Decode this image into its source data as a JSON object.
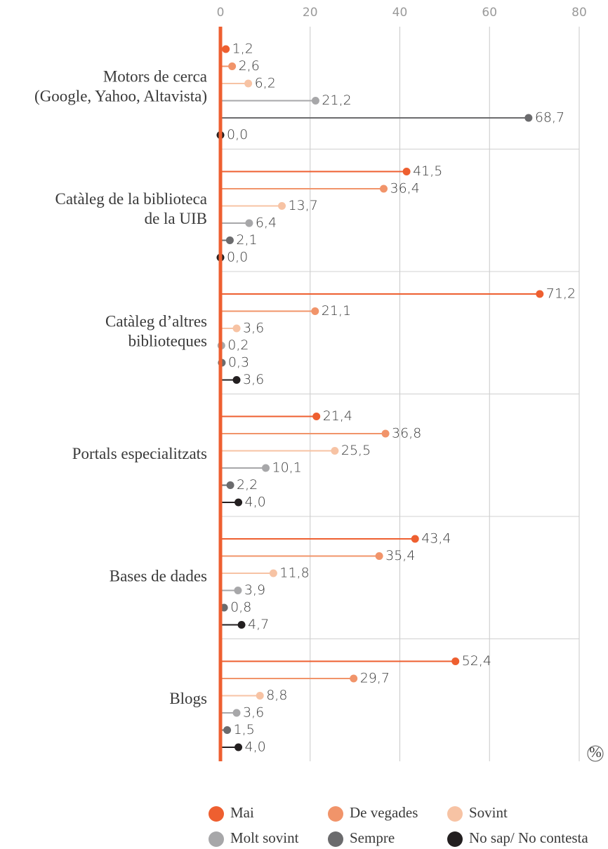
{
  "chart_data": {
    "type": "lollipop",
    "orientation": "horizontal",
    "categories": [
      "Motors de cerca\n(Google, Yahoo, Altavista)",
      "Catàleg de la biblioteca\nde la UIB",
      "Catàleg d’altres\nbiblioteques",
      "Portals especialitzats",
      "Bases de dades",
      "Blogs"
    ],
    "series": [
      {
        "name": "Mai",
        "color": "#ee5f30",
        "values": [
          1.2,
          41.5,
          71.2,
          21.4,
          43.4,
          52.4
        ],
        "value_labels": [
          "1,2",
          "41,5",
          "71,2",
          "21,4",
          "43,4",
          "52,4"
        ]
      },
      {
        "name": "De vegades",
        "color": "#f1946a",
        "values": [
          2.6,
          36.4,
          21.1,
          36.8,
          35.4,
          29.7
        ],
        "value_labels": [
          "2,6",
          "36,4",
          "21,1",
          "36,8",
          "35,4",
          "29,7"
        ]
      },
      {
        "name": "Sovint",
        "color": "#f7c3a4",
        "values": [
          6.2,
          13.7,
          3.6,
          25.5,
          11.8,
          8.8
        ],
        "value_labels": [
          "6,2",
          "13,7",
          "3,6",
          "25,5",
          "11,8",
          "8,8"
        ]
      },
      {
        "name": "Molt sovint",
        "color": "#a7a7a9",
        "values": [
          21.2,
          6.4,
          0.2,
          10.1,
          3.9,
          3.6
        ],
        "value_labels": [
          "21,2",
          "6,4",
          "0,2",
          "10,1",
          "3,9",
          "3,6"
        ]
      },
      {
        "name": "Sempre",
        "color": "#6b6b6d",
        "values": [
          68.7,
          2.1,
          0.3,
          2.2,
          0.8,
          1.5
        ],
        "value_labels": [
          "68,7",
          "2,1",
          "0,3",
          "2,2",
          "0,8",
          "1,5"
        ]
      },
      {
        "name": "No sap/ No contesta",
        "color": "#231f20",
        "values": [
          0.0,
          0.0,
          3.6,
          4.0,
          4.7,
          4.0
        ],
        "value_labels": [
          "0,0",
          "0,0",
          "3,6",
          "4,0",
          "4,7",
          "4,0"
        ]
      }
    ],
    "xlim": [
      0,
      80
    ],
    "xticks": [
      0,
      20,
      40,
      60,
      80
    ],
    "grid": true,
    "unit": "%",
    "legend": "bottom"
  }
}
